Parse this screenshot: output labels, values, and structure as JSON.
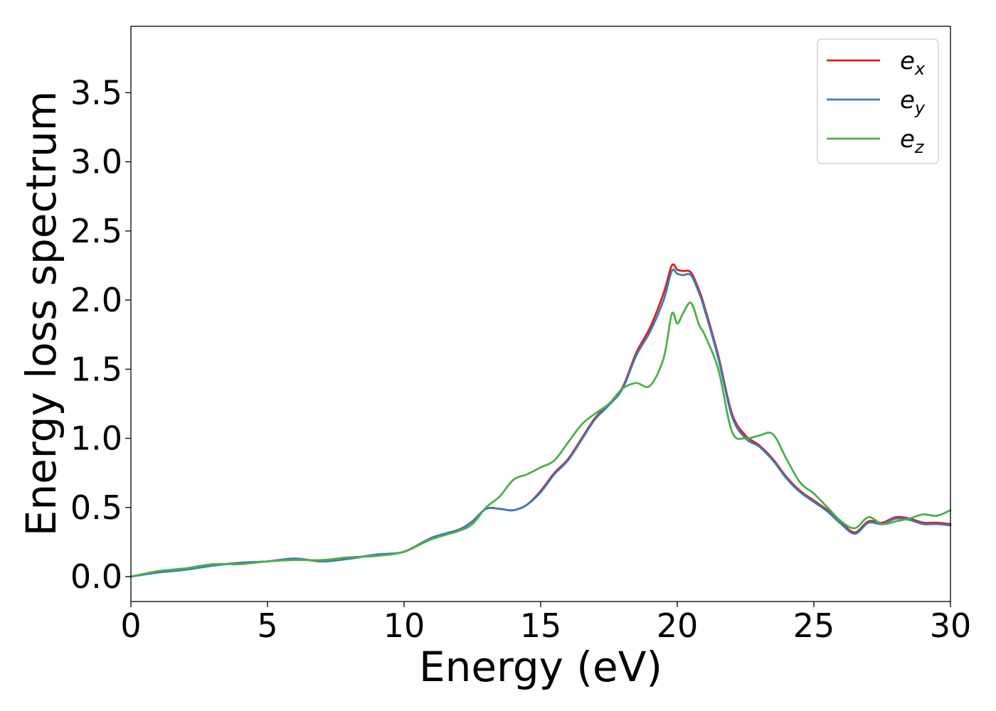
{
  "chart_data": {
    "type": "line",
    "title": "",
    "xlabel": "Energy (eV)",
    "ylabel": "Energy loss spectrum",
    "xlim": [
      0,
      30
    ],
    "ylim": [
      -0.18,
      3.98
    ],
    "xticks": [
      0,
      5,
      10,
      15,
      20,
      25,
      30
    ],
    "xtick_labels": [
      "0",
      "5",
      "10",
      "15",
      "20",
      "25",
      "30"
    ],
    "yticks": [
      0.0,
      0.5,
      1.0,
      1.5,
      2.0,
      2.5,
      3.0,
      3.5
    ],
    "ytick_labels": [
      "0.0",
      "0.5",
      "1.0",
      "1.5",
      "2.0",
      "2.5",
      "3.0",
      "3.5"
    ],
    "grid": false,
    "legend_position": "top-right",
    "series": [
      {
        "name": "e",
        "subscript": "x",
        "color": "#e41a1c",
        "x": [
          0,
          1,
          2,
          3,
          4,
          5,
          6,
          7,
          8,
          9,
          10,
          11,
          12,
          12.5,
          13,
          13.5,
          14,
          14.5,
          15,
          15.5,
          16,
          16.5,
          17,
          17.5,
          18,
          18.5,
          19,
          19.5,
          19.8,
          20,
          20.2,
          20.5,
          20.8,
          21,
          21.5,
          22,
          22.5,
          23,
          23.5,
          24,
          24.5,
          25,
          25.5,
          26,
          26.5,
          27,
          27.5,
          28,
          28.5,
          29,
          29.5,
          30
        ],
        "y": [
          0.0,
          0.03,
          0.05,
          0.08,
          0.1,
          0.11,
          0.13,
          0.11,
          0.13,
          0.16,
          0.18,
          0.28,
          0.34,
          0.4,
          0.49,
          0.49,
          0.48,
          0.52,
          0.62,
          0.75,
          0.85,
          1.0,
          1.15,
          1.25,
          1.37,
          1.62,
          1.8,
          2.05,
          2.25,
          2.22,
          2.21,
          2.2,
          2.07,
          1.95,
          1.6,
          1.18,
          1.02,
          0.95,
          0.85,
          0.72,
          0.62,
          0.55,
          0.48,
          0.39,
          0.32,
          0.4,
          0.39,
          0.43,
          0.42,
          0.39,
          0.39,
          0.38
        ]
      },
      {
        "name": "e",
        "subscript": "y",
        "color": "#377eb8",
        "x": [
          0,
          1,
          2,
          3,
          4,
          5,
          6,
          7,
          8,
          9,
          10,
          11,
          12,
          12.5,
          13,
          13.5,
          14,
          14.5,
          15,
          15.5,
          16,
          16.5,
          17,
          17.5,
          18,
          18.5,
          19,
          19.5,
          19.8,
          20,
          20.2,
          20.5,
          20.8,
          21,
          21.5,
          22,
          22.5,
          23,
          23.5,
          24,
          24.5,
          25,
          25.5,
          26,
          26.5,
          27,
          27.5,
          28,
          28.5,
          29,
          29.5,
          30
        ],
        "y": [
          0.0,
          0.03,
          0.05,
          0.08,
          0.1,
          0.11,
          0.13,
          0.11,
          0.13,
          0.16,
          0.18,
          0.28,
          0.34,
          0.4,
          0.49,
          0.49,
          0.48,
          0.52,
          0.61,
          0.74,
          0.84,
          0.99,
          1.14,
          1.24,
          1.36,
          1.6,
          1.77,
          2.0,
          2.21,
          2.19,
          2.18,
          2.18,
          2.05,
          1.93,
          1.58,
          1.16,
          1.0,
          0.94,
          0.84,
          0.71,
          0.61,
          0.54,
          0.47,
          0.38,
          0.31,
          0.39,
          0.38,
          0.42,
          0.41,
          0.38,
          0.38,
          0.37
        ]
      },
      {
        "name": "e",
        "subscript": "z",
        "color": "#4daf4a",
        "x": [
          0,
          1,
          2,
          3,
          4,
          5,
          6,
          7,
          8,
          9,
          10,
          11,
          12,
          12.5,
          13,
          13.5,
          14,
          14.5,
          15,
          15.5,
          16,
          16.5,
          17,
          17.5,
          18,
          18.5,
          19,
          19.5,
          19.8,
          20,
          20.2,
          20.5,
          20.8,
          21,
          21.5,
          22,
          22.5,
          23,
          23.5,
          24,
          24.5,
          25,
          25.5,
          26,
          26.5,
          27,
          27.5,
          28,
          28.5,
          29,
          29.5,
          30
        ],
        "y": [
          0.0,
          0.04,
          0.06,
          0.09,
          0.09,
          0.11,
          0.12,
          0.12,
          0.14,
          0.15,
          0.18,
          0.27,
          0.33,
          0.38,
          0.5,
          0.58,
          0.7,
          0.74,
          0.79,
          0.84,
          0.97,
          1.1,
          1.18,
          1.25,
          1.36,
          1.4,
          1.38,
          1.58,
          1.9,
          1.83,
          1.9,
          1.98,
          1.82,
          1.75,
          1.5,
          1.05,
          1.0,
          1.02,
          1.03,
          0.85,
          0.68,
          0.6,
          0.5,
          0.4,
          0.35,
          0.43,
          0.38,
          0.4,
          0.42,
          0.45,
          0.44,
          0.48
        ]
      }
    ]
  }
}
